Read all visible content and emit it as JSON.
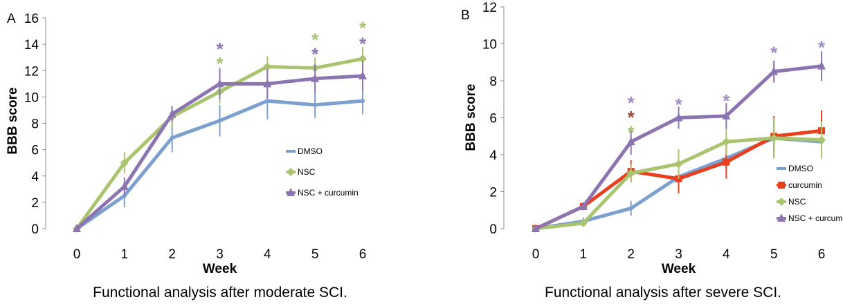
{
  "chart_data": [
    {
      "type": "line",
      "panel_label": "A",
      "caption": "Functional analysis after moderate SCI.",
      "xlabel": "Week",
      "ylabel": "BBB score",
      "x": [
        0,
        1,
        2,
        3,
        4,
        5,
        6
      ],
      "x_ticks": [
        "0",
        "1",
        "2",
        "3",
        "4",
        "5",
        "6"
      ],
      "ylim": [
        0,
        16
      ],
      "y_ticks": [
        "0",
        "2",
        "4",
        "6",
        "8",
        "10",
        "12",
        "14",
        "16"
      ],
      "grid": false,
      "legend_position": "right",
      "series": [
        {
          "name": "DMSO",
          "color": "#7b9fcf",
          "marker": "none",
          "values": [
            0,
            2.5,
            6.9,
            8.2,
            9.7,
            9.4,
            9.7
          ],
          "errors": [
            0,
            0.9,
            1.1,
            1.2,
            1.4,
            1.0,
            1.0
          ]
        },
        {
          "name": "NSC",
          "color": "#a9c46e",
          "marker": "diamond",
          "values": [
            0,
            5.0,
            8.5,
            10.4,
            12.3,
            12.2,
            12.9
          ],
          "errors": [
            0,
            0.8,
            0.8,
            0.9,
            0.8,
            0.8,
            0.9
          ]
        },
        {
          "name": "NSC + curcumin",
          "color": "#8c74b0",
          "marker": "triangle",
          "values": [
            0,
            3.2,
            8.7,
            11.0,
            11.0,
            11.4,
            11.6
          ],
          "errors": [
            0,
            0.7,
            0.6,
            1.2,
            1.1,
            1.1,
            1.1
          ]
        }
      ],
      "annotations": [
        {
          "x": 3,
          "text": "*",
          "color": "#8c74b0",
          "y": 13.9
        },
        {
          "x": 3,
          "text": "*",
          "color": "#a9c46e",
          "y": 12.8
        },
        {
          "x": 5,
          "text": "*",
          "color": "#a9c46e",
          "y": 14.6
        },
        {
          "x": 5,
          "text": "*",
          "color": "#8c74b0",
          "y": 13.5
        },
        {
          "x": 6,
          "text": "*",
          "color": "#a9c46e",
          "y": 15.5
        },
        {
          "x": 6,
          "text": "*",
          "color": "#8c74b0",
          "y": 14.3
        }
      ]
    },
    {
      "type": "line",
      "panel_label": "B",
      "caption": "Functional analysis after severe SCI.",
      "xlabel": "Week",
      "ylabel": "BBB score",
      "x": [
        0,
        1,
        2,
        3,
        4,
        5,
        6
      ],
      "x_ticks": [
        "0",
        "1",
        "2",
        "3",
        "4",
        "5",
        "6"
      ],
      "ylim": [
        0,
        12
      ],
      "y_ticks": [
        "0",
        "2",
        "4",
        "6",
        "8",
        "10",
        "12"
      ],
      "grid": false,
      "legend_position": "right",
      "series": [
        {
          "name": "DMSO",
          "color": "#7b9fcf",
          "marker": "none",
          "values": [
            0,
            0.4,
            1.1,
            2.8,
            3.8,
            4.9,
            4.7
          ],
          "errors": [
            0,
            0.2,
            0.4,
            0.5,
            0.6,
            0.7,
            0.7
          ]
        },
        {
          "name": "curcumin",
          "color": "#e8401f",
          "marker": "square",
          "values": [
            0,
            1.2,
            3.1,
            2.7,
            3.6,
            5.0,
            5.3
          ],
          "errors": [
            0,
            0.2,
            0.6,
            0.8,
            0.9,
            1.1,
            1.1
          ]
        },
        {
          "name": "NSC",
          "color": "#a9c46e",
          "marker": "diamond",
          "values": [
            0,
            0.3,
            3.0,
            3.5,
            4.7,
            4.9,
            4.8
          ],
          "errors": [
            0,
            0.2,
            0.5,
            0.8,
            0.7,
            1.1,
            1.0
          ]
        },
        {
          "name": "NSC + curcumin",
          "color": "#8c74b0",
          "marker": "triangle",
          "values": [
            0,
            1.2,
            4.7,
            6.0,
            6.1,
            8.5,
            8.8
          ],
          "errors": [
            0,
            0.2,
            0.7,
            0.6,
            0.7,
            0.6,
            0.8
          ]
        }
      ],
      "annotations": [
        {
          "x": 2,
          "text": "*",
          "color": "#a08cc2",
          "y": 7.0
        },
        {
          "x": 2,
          "text": "*",
          "color": "#a94a3a",
          "y": 6.2
        },
        {
          "x": 2,
          "text": "*",
          "color": "#a9c46e",
          "y": 5.4
        },
        {
          "x": 3,
          "text": "*",
          "color": "#a08cc2",
          "y": 6.9
        },
        {
          "x": 4,
          "text": "*",
          "color": "#a08cc2",
          "y": 7.1
        },
        {
          "x": 5,
          "text": "*",
          "color": "#a08cc2",
          "y": 9.7
        },
        {
          "x": 6,
          "text": "*",
          "color": "#a08cc2",
          "y": 10.0
        }
      ]
    }
  ]
}
